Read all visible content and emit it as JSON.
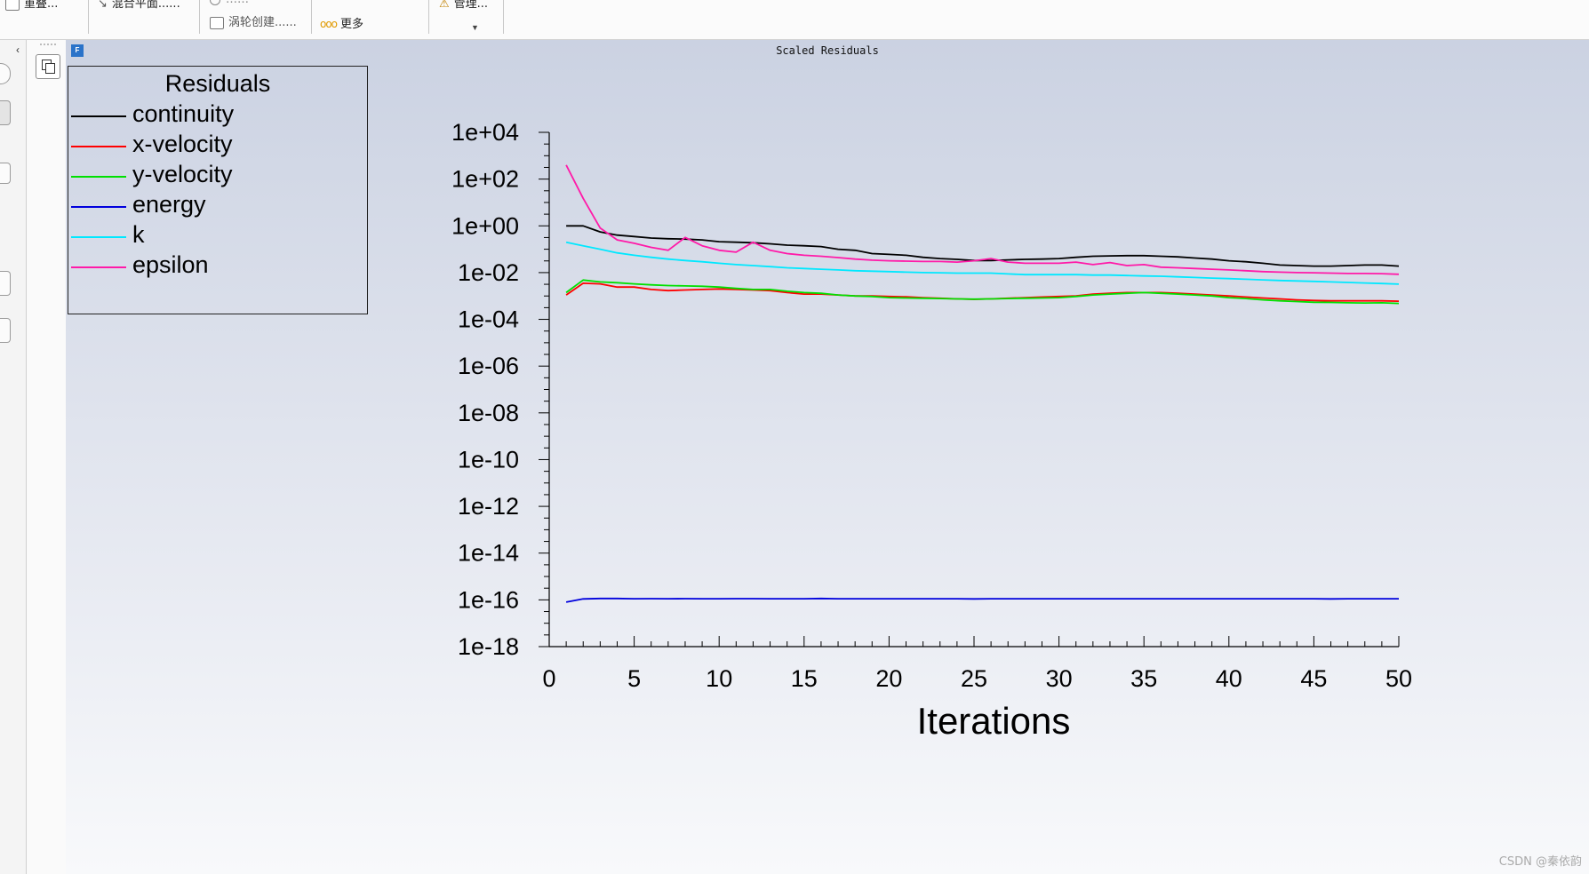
{
  "ribbon": {
    "items": [
      {
        "label": "重叠..."
      },
      {
        "label": "混合平面......"
      },
      {
        "label": "……"
      },
      {
        "label": "涡轮创建......"
      },
      {
        "label": "更多"
      },
      {
        "label": "管理..."
      }
    ]
  },
  "plot_window": {
    "logo": "F",
    "title": "Scaled Residuals",
    "watermark": "CSDN @秦依韵"
  },
  "legend": {
    "title": "Residuals",
    "placement": "top-left"
  },
  "chart_data": {
    "type": "line",
    "title": "Scaled Residuals",
    "xlabel": "Iterations",
    "ylabel": "",
    "y_scale": "log",
    "xlim": [
      0,
      50
    ],
    "ylim_exponent": [
      -18,
      4
    ],
    "xticks": [
      "0",
      "5",
      "10",
      "15",
      "20",
      "25",
      "30",
      "35",
      "40",
      "45",
      "50"
    ],
    "yticks": [
      "1e+04",
      "1e+02",
      "1e+00",
      "1e-02",
      "1e-04",
      "1e-06",
      "1e-08",
      "1e-10",
      "1e-12",
      "1e-14",
      "1e-16",
      "1e-18"
    ],
    "grid": false,
    "x": [
      1,
      2,
      3,
      4,
      5,
      6,
      7,
      8,
      9,
      10,
      11,
      12,
      13,
      14,
      15,
      16,
      17,
      18,
      19,
      20,
      21,
      22,
      23,
      24,
      25,
      26,
      27,
      28,
      29,
      30,
      31,
      32,
      33,
      34,
      35,
      36,
      37,
      38,
      39,
      40,
      41,
      42,
      43,
      44,
      45,
      46,
      47,
      48,
      49,
      50
    ],
    "series": [
      {
        "name": "continuity",
        "color": "#000000",
        "values": [
          1.0,
          1.0,
          0.55,
          0.4,
          0.35,
          0.3,
          0.28,
          0.27,
          0.25,
          0.21,
          0.2,
          0.19,
          0.17,
          0.15,
          0.14,
          0.13,
          0.1,
          0.09,
          0.065,
          0.06,
          0.055,
          0.045,
          0.04,
          0.037,
          0.033,
          0.033,
          0.035,
          0.037,
          0.038,
          0.04,
          0.045,
          0.05,
          0.052,
          0.053,
          0.053,
          0.05,
          0.047,
          0.042,
          0.038,
          0.032,
          0.029,
          0.025,
          0.021,
          0.02,
          0.019,
          0.019,
          0.02,
          0.021,
          0.021,
          0.019
        ]
      },
      {
        "name": "x-velocity",
        "color": "#ff0000",
        "values": [
          0.0011,
          0.0035,
          0.0033,
          0.0024,
          0.0024,
          0.0019,
          0.0017,
          0.0018,
          0.0019,
          0.002,
          0.0019,
          0.0018,
          0.0017,
          0.0014,
          0.0012,
          0.0012,
          0.0011,
          0.001,
          0.001,
          0.00095,
          0.00092,
          0.00085,
          0.0008,
          0.00075,
          0.00072,
          0.00075,
          0.0008,
          0.00085,
          0.0009,
          0.00095,
          0.001,
          0.0012,
          0.0013,
          0.0014,
          0.0014,
          0.0014,
          0.0013,
          0.0012,
          0.0011,
          0.001,
          0.0009,
          0.00082,
          0.00075,
          0.00068,
          0.00064,
          0.00062,
          0.00062,
          0.00062,
          0.00062,
          0.0006
        ]
      },
      {
        "name": "y-velocity",
        "color": "#00e000",
        "values": [
          0.0014,
          0.0048,
          0.004,
          0.0037,
          0.0033,
          0.003,
          0.0028,
          0.0027,
          0.0026,
          0.0024,
          0.0021,
          0.0019,
          0.0019,
          0.0016,
          0.0014,
          0.0013,
          0.0011,
          0.001,
          0.00095,
          0.00085,
          0.00082,
          0.0008,
          0.00078,
          0.00075,
          0.00073,
          0.00075,
          0.00078,
          0.0008,
          0.00082,
          0.00085,
          0.00095,
          0.0011,
          0.0012,
          0.0013,
          0.0014,
          0.0013,
          0.0012,
          0.0011,
          0.001,
          0.00085,
          0.00078,
          0.00068,
          0.00062,
          0.00058,
          0.00054,
          0.00053,
          0.00051,
          0.0005,
          0.00051,
          0.00048
        ]
      },
      {
        "name": "energy",
        "color": "#0000dd",
        "values": [
          8e-17,
          1.1e-16,
          1.15e-16,
          1.15e-16,
          1.12e-16,
          1.13e-16,
          1.12e-16,
          1.13e-16,
          1.12e-16,
          1.12e-16,
          1.13e-16,
          1.13e-16,
          1.12e-16,
          1.12e-16,
          1.12e-16,
          1.15e-16,
          1.12e-16,
          1.12e-16,
          1.12e-16,
          1.12e-16,
          1.12e-16,
          1.12e-16,
          1.12e-16,
          1.12e-16,
          1.1e-16,
          1.12e-16,
          1.12e-16,
          1.12e-16,
          1.12e-16,
          1.12e-16,
          1.12e-16,
          1.12e-16,
          1.12e-16,
          1.12e-16,
          1.12e-16,
          1.12e-16,
          1.12e-16,
          1.12e-16,
          1.12e-16,
          1.12e-16,
          1.12e-16,
          1.12e-16,
          1.12e-16,
          1.12e-16,
          1.12e-16,
          1.1e-16,
          1.12e-16,
          1.12e-16,
          1.12e-16,
          1.12e-16
        ]
      },
      {
        "name": "k",
        "color": "#00e8ff",
        "values": [
          0.2,
          0.14,
          0.1,
          0.07,
          0.055,
          0.045,
          0.038,
          0.033,
          0.029,
          0.025,
          0.022,
          0.02,
          0.018,
          0.016,
          0.015,
          0.014,
          0.013,
          0.012,
          0.0115,
          0.011,
          0.0105,
          0.01,
          0.0098,
          0.0095,
          0.0095,
          0.0095,
          0.0088,
          0.0082,
          0.0082,
          0.0082,
          0.0082,
          0.0078,
          0.0078,
          0.0075,
          0.0072,
          0.007,
          0.0066,
          0.0062,
          0.0058,
          0.0055,
          0.0052,
          0.0049,
          0.0046,
          0.0044,
          0.0042,
          0.004,
          0.0038,
          0.0036,
          0.0034,
          0.0032
        ]
      },
      {
        "name": "epsilon",
        "color": "#ff1aa8",
        "values": [
          400,
          15,
          0.8,
          0.25,
          0.18,
          0.12,
          0.09,
          0.32,
          0.14,
          0.09,
          0.075,
          0.2,
          0.09,
          0.065,
          0.055,
          0.05,
          0.044,
          0.038,
          0.034,
          0.032,
          0.031,
          0.03,
          0.03,
          0.028,
          0.032,
          0.04,
          0.028,
          0.025,
          0.025,
          0.025,
          0.028,
          0.022,
          0.027,
          0.02,
          0.022,
          0.017,
          0.016,
          0.015,
          0.014,
          0.013,
          0.012,
          0.011,
          0.0105,
          0.01,
          0.0098,
          0.0095,
          0.0092,
          0.0092,
          0.009,
          0.0085
        ]
      }
    ]
  }
}
